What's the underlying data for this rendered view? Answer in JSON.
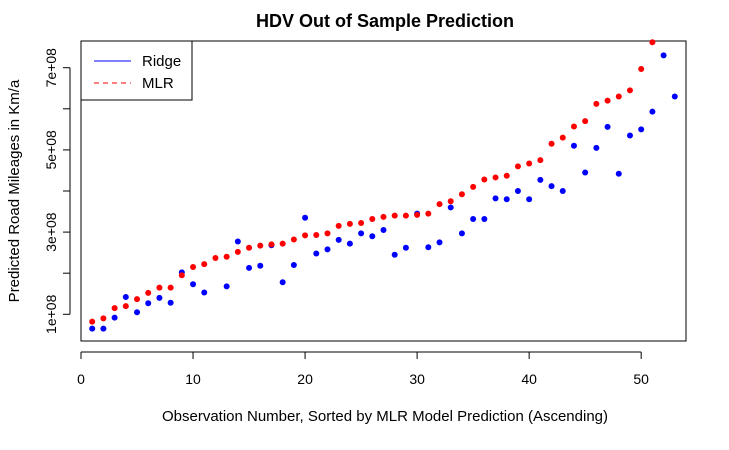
{
  "chart_data": {
    "type": "scatter",
    "title": "HDV Out of Sample Prediction",
    "xlabel": "Observation Number, Sorted by MLR Model Prediction (Ascending)",
    "ylabel": "Predicted Road Mileages in Km/a",
    "xlim": [
      0,
      54
    ],
    "ylim": [
      35000000,
      765000000
    ],
    "x_ticks": [
      0,
      10,
      20,
      30,
      40,
      50
    ],
    "x_tick_labels": [
      "0",
      "10",
      "20",
      "30",
      "40",
      "50"
    ],
    "y_ticks": [
      100000000,
      200000000,
      300000000,
      400000000,
      500000000,
      600000000,
      700000000
    ],
    "y_tick_labels": [
      "1e+08",
      "",
      "3e+08",
      "",
      "5e+08",
      "",
      "7e+08"
    ],
    "legend_position": "top-left",
    "legend": [
      {
        "label": "Ridge",
        "color": "#0000ff",
        "line": "solid"
      },
      {
        "label": "MLR",
        "color": "#ff0000",
        "line": "dashed"
      }
    ],
    "x": [
      1,
      2,
      3,
      4,
      5,
      6,
      7,
      8,
      9,
      10,
      11,
      12,
      13,
      14,
      15,
      16,
      17,
      18,
      19,
      20,
      21,
      22,
      23,
      24,
      25,
      26,
      27,
      28,
      29,
      30,
      31,
      32,
      33,
      34,
      35,
      36,
      37,
      38,
      39,
      40,
      41,
      42,
      43,
      44,
      45,
      46,
      47,
      48,
      49,
      50,
      51,
      52,
      53
    ],
    "series": [
      {
        "name": "Ridge",
        "color": "#0000ff",
        "values": [
          65000000,
          65000000,
          92000000,
          142000000,
          105000000,
          127000000,
          140000000,
          128000000,
          202000000,
          173000000,
          153000000,
          null,
          168000000,
          277000000,
          213000000,
          218000000,
          268000000,
          178000000,
          220000000,
          335000000,
          248000000,
          258000000,
          281000000,
          272000000,
          297000000,
          290000000,
          305000000,
          245000000,
          262000000,
          345000000,
          263000000,
          275000000,
          360000000,
          297000000,
          332000000,
          332000000,
          382000000,
          380000000,
          400000000,
          380000000,
          427000000,
          412000000,
          400000000,
          510000000,
          445000000,
          505000000,
          556000000,
          442000000,
          535000000,
          550000000,
          593000000,
          730000000,
          630000000
        ]
      },
      {
        "name": "MLR",
        "color": "#ff0000",
        "values": [
          82000000,
          90000000,
          115000000,
          120000000,
          137000000,
          152000000,
          165000000,
          165000000,
          195000000,
          215000000,
          222000000,
          237000000,
          240000000,
          252000000,
          262000000,
          267000000,
          270000000,
          272000000,
          282000000,
          292000000,
          293000000,
          297000000,
          315000000,
          320000000,
          322000000,
          332000000,
          337000000,
          340000000,
          340000000,
          342000000,
          345000000,
          368000000,
          375000000,
          392000000,
          410000000,
          428000000,
          433000000,
          437000000,
          460000000,
          467000000,
          475000000,
          515000000,
          530000000,
          557000000,
          570000000,
          612000000,
          620000000,
          630000000,
          645000000,
          697000000,
          762000000,
          null,
          null
        ]
      }
    ]
  }
}
